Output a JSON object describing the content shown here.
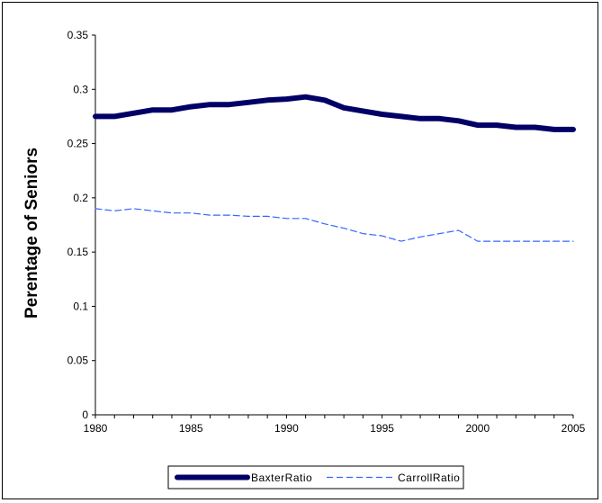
{
  "chart_data": {
    "type": "line",
    "title": "",
    "xlabel": "",
    "ylabel": "Perentage of Seniors",
    "xlim": [
      1980,
      2005
    ],
    "ylim": [
      0,
      0.35
    ],
    "x_ticks": [
      "1980",
      "1985",
      "1990",
      "1995",
      "2000",
      "2005"
    ],
    "y_ticks": [
      "0",
      "0.05",
      "0.1",
      "0.15",
      "0.2",
      "0.25",
      "0.3",
      "0.35"
    ],
    "grid": false,
    "legend_position": "bottom",
    "x": [
      1980,
      1981,
      1982,
      1983,
      1984,
      1985,
      1986,
      1987,
      1988,
      1989,
      1990,
      1991,
      1992,
      1993,
      1994,
      1995,
      1996,
      1997,
      1998,
      1999,
      2000,
      2001,
      2002,
      2003,
      2004,
      2005
    ],
    "series": [
      {
        "name": "BaxterRatio",
        "color": "#000066",
        "style": "solid-thick",
        "values": [
          0.275,
          0.275,
          0.278,
          0.281,
          0.281,
          0.284,
          0.286,
          0.286,
          0.288,
          0.29,
          0.291,
          0.293,
          0.29,
          0.283,
          0.28,
          0.277,
          0.275,
          0.273,
          0.273,
          0.271,
          0.267,
          0.267,
          0.265,
          0.265,
          0.263,
          0.263
        ]
      },
      {
        "name": "CarrollRatio",
        "color": "#3366ff",
        "style": "dashed",
        "values": [
          0.19,
          0.188,
          0.19,
          0.188,
          0.186,
          0.186,
          0.184,
          0.184,
          0.183,
          0.183,
          0.181,
          0.181,
          0.176,
          0.172,
          0.167,
          0.165,
          0.16,
          0.164,
          0.167,
          0.17,
          0.16,
          0.16,
          0.16,
          0.16,
          0.16,
          0.16
        ]
      }
    ]
  }
}
